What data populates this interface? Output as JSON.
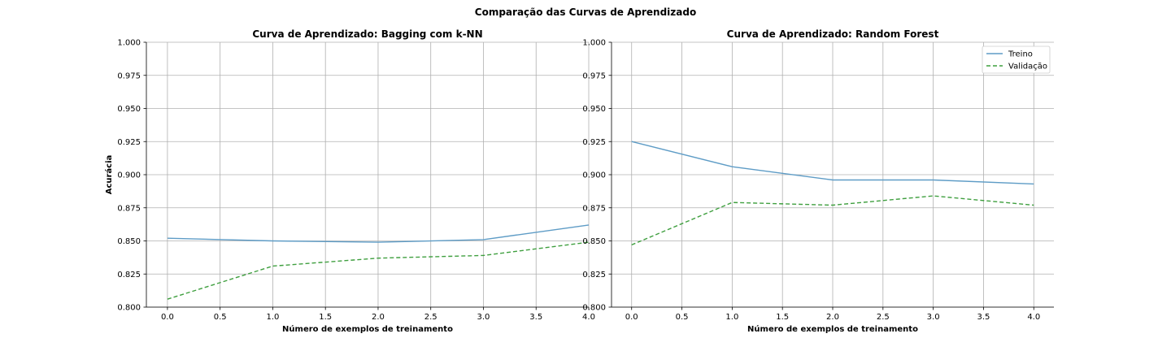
{
  "figure": {
    "suptitle": "Comparação das Curvas de Aprendizado"
  },
  "chart_data": [
    {
      "type": "line",
      "title": "Curva de Aprendizado: Bagging com k-NN",
      "xlabel": "Número de exemplos de treinamento",
      "ylabel": "Acurácia",
      "xlim": [
        -0.2,
        4.0
      ],
      "ylim": [
        0.8,
        1.0
      ],
      "x_ticks": [
        "0.0",
        "0.5",
        "1.0",
        "1.5",
        "2.0",
        "2.5",
        "3.0",
        "3.5",
        "4.0"
      ],
      "y_ticks": [
        "0.800",
        "0.825",
        "0.850",
        "0.875",
        "0.900",
        "0.925",
        "0.950",
        "0.975",
        "1.000"
      ],
      "grid": true,
      "legend": null,
      "x": [
        0,
        1,
        2,
        3,
        4
      ],
      "series": [
        {
          "name": "Treino",
          "style": "solid",
          "color": "#5e9cc6",
          "values": [
            0.852,
            0.85,
            0.849,
            0.851,
            0.862
          ]
        },
        {
          "name": "Validação",
          "style": "dashed",
          "color": "#3f9f3f",
          "values": [
            0.806,
            0.831,
            0.837,
            0.839,
            0.849
          ]
        }
      ]
    },
    {
      "type": "line",
      "title": "Curva de Aprendizado: Random Forest",
      "xlabel": "Número de exemplos de treinamento",
      "ylabel": "",
      "xlim": [
        -0.2,
        4.2
      ],
      "ylim": [
        0.8,
        1.0
      ],
      "x_ticks": [
        "0.0",
        "0.5",
        "1.0",
        "1.5",
        "2.0",
        "2.5",
        "3.0",
        "3.5",
        "4.0"
      ],
      "y_ticks": [
        "0.800",
        "0.825",
        "0.850",
        "0.875",
        "0.900",
        "0.925",
        "0.950",
        "0.975",
        "1.000"
      ],
      "grid": true,
      "legend": "top-right",
      "x": [
        0,
        1,
        2,
        3,
        4
      ],
      "series": [
        {
          "name": "Treino",
          "style": "solid",
          "color": "#5e9cc6",
          "values": [
            0.925,
            0.906,
            0.896,
            0.896,
            0.893
          ]
        },
        {
          "name": "Validação",
          "style": "dashed",
          "color": "#3f9f3f",
          "values": [
            0.847,
            0.879,
            0.877,
            0.884,
            0.877
          ]
        }
      ]
    }
  ]
}
